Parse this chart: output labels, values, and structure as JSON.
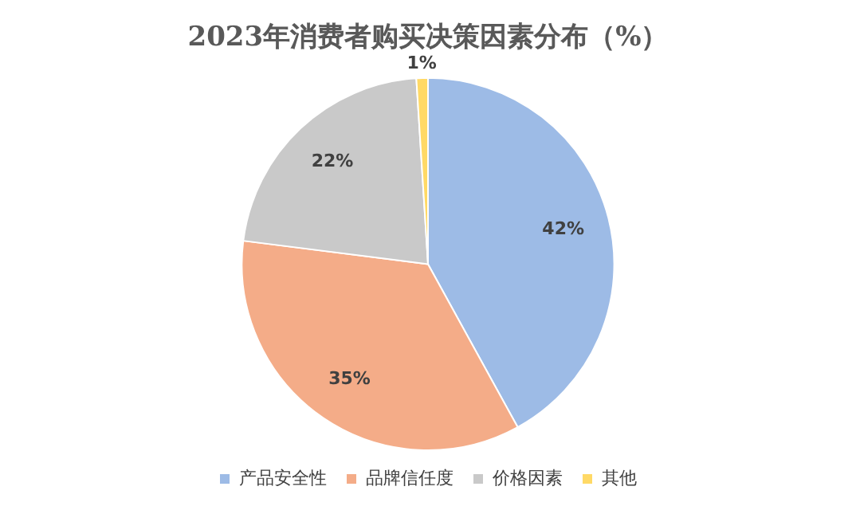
{
  "chart_data": {
    "type": "pie",
    "title": "2023年消费者购买决策因素分布（%）",
    "categories": [
      "产品安全性",
      "品牌信任度",
      "价格因素",
      "其他"
    ],
    "values": [
      42,
      35,
      22,
      1
    ],
    "colors": [
      "#9dbbe6",
      "#f4ac88",
      "#c9c9c9",
      "#ffd966"
    ],
    "value_labels": [
      "42%",
      "35%",
      "22%",
      "1%"
    ],
    "legend": "bottom"
  }
}
